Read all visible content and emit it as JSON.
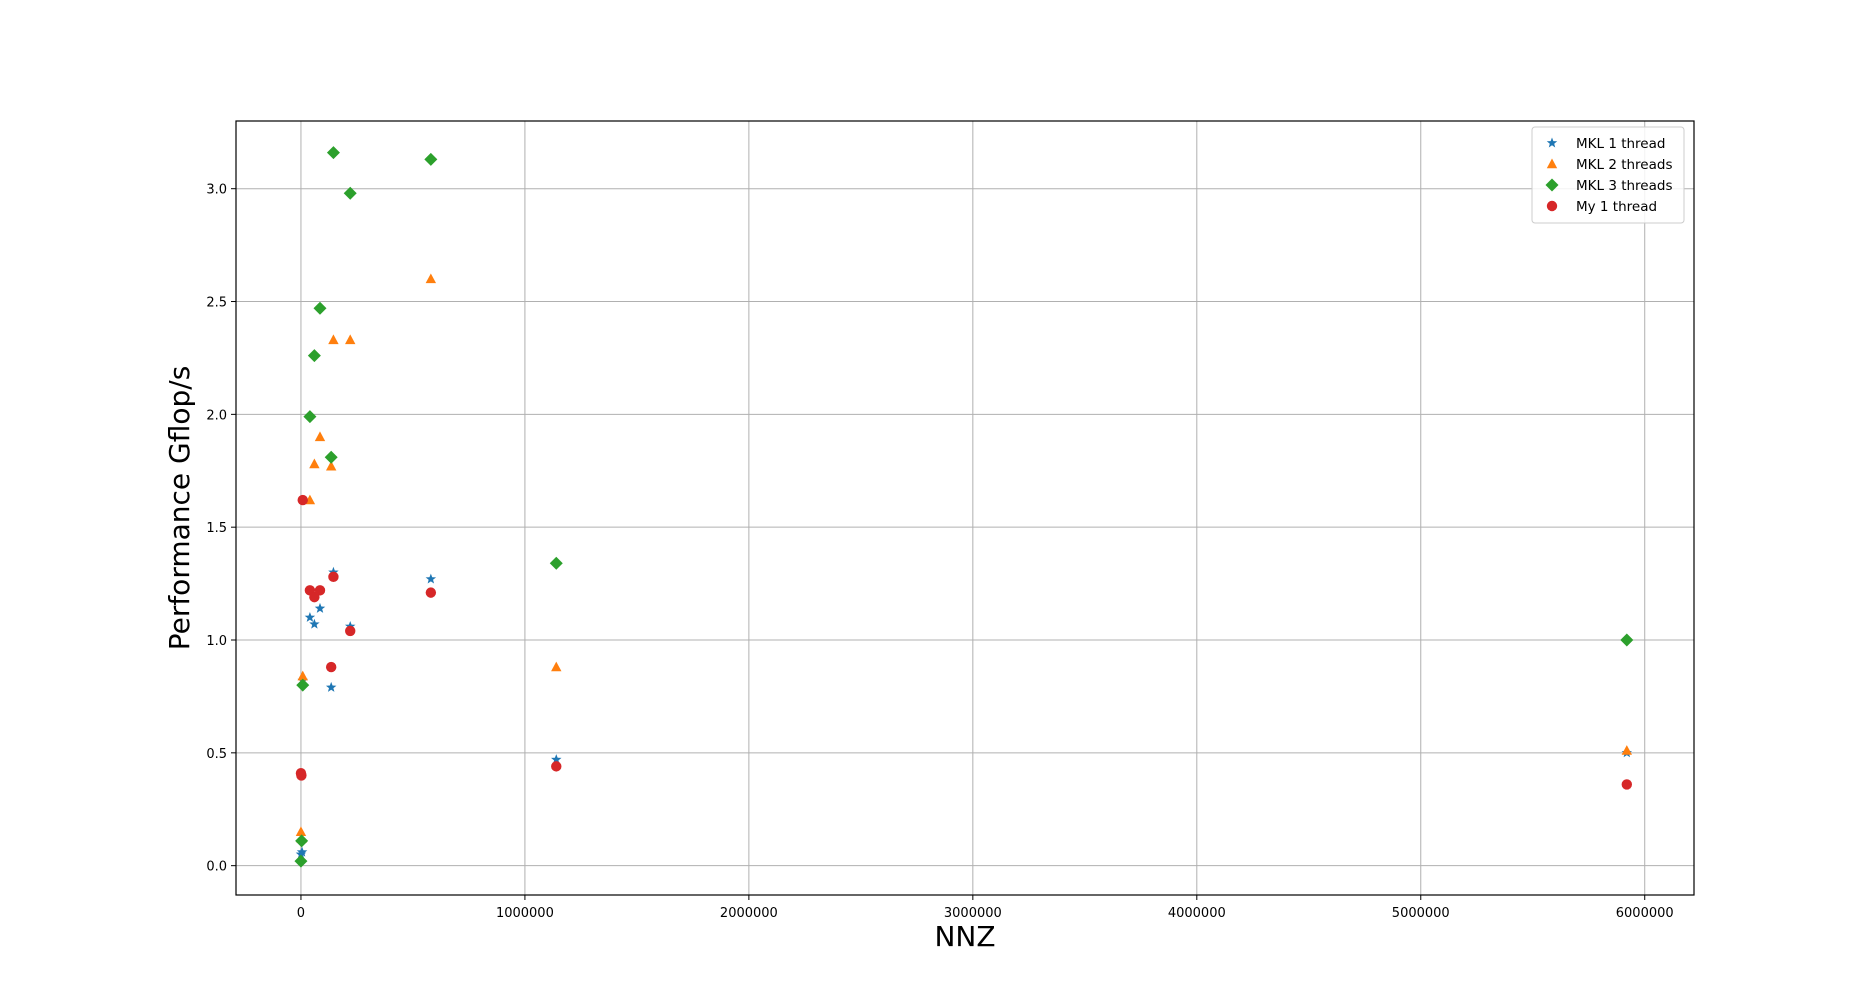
{
  "chart_data": {
    "type": "scatter",
    "title": "",
    "xlabel": "NNZ",
    "ylabel": "Performance Gflop/s",
    "xlim": [
      -290000,
      6220000
    ],
    "ylim": [
      -0.13,
      3.3
    ],
    "xticks": [
      0,
      1000000,
      2000000,
      3000000,
      4000000,
      5000000,
      6000000
    ],
    "yticks": [
      0.0,
      0.5,
      1.0,
      1.5,
      2.0,
      2.5,
      3.0
    ],
    "grid": true,
    "legend_position": "top-right",
    "series": [
      {
        "name": "MKL 1 thread",
        "marker": "star",
        "color": "#1f77b4",
        "points": [
          [
            0,
            0.05
          ],
          [
            5000,
            0.06
          ],
          [
            8000,
            0.82
          ],
          [
            40000,
            1.1
          ],
          [
            60000,
            1.07
          ],
          [
            85000,
            1.14
          ],
          [
            135000,
            0.79
          ],
          [
            145000,
            1.3
          ],
          [
            220000,
            1.06
          ],
          [
            580000,
            1.27
          ],
          [
            1140000,
            0.47
          ],
          [
            5920000,
            0.5
          ]
        ]
      },
      {
        "name": "MKL 2 threads",
        "marker": "triangle",
        "color": "#ff7f0e",
        "points": [
          [
            0,
            0.15
          ],
          [
            3000,
            0.12
          ],
          [
            8000,
            0.84
          ],
          [
            40000,
            1.62
          ],
          [
            60000,
            1.78
          ],
          [
            85000,
            1.9
          ],
          [
            135000,
            1.77
          ],
          [
            145000,
            2.33
          ],
          [
            220000,
            2.33
          ],
          [
            580000,
            2.6
          ],
          [
            1140000,
            0.88
          ],
          [
            5920000,
            0.51
          ]
        ]
      },
      {
        "name": "MKL 3 threads",
        "marker": "diamond",
        "color": "#2ca02c",
        "points": [
          [
            0,
            0.02
          ],
          [
            3000,
            0.11
          ],
          [
            8000,
            0.8
          ],
          [
            40000,
            1.99
          ],
          [
            60000,
            2.26
          ],
          [
            85000,
            2.47
          ],
          [
            135000,
            1.81
          ],
          [
            145000,
            3.16
          ],
          [
            220000,
            2.98
          ],
          [
            580000,
            3.13
          ],
          [
            1140000,
            1.34
          ],
          [
            5920000,
            1.0
          ]
        ]
      },
      {
        "name": "My 1 thread",
        "marker": "circle",
        "color": "#d62728",
        "points": [
          [
            0,
            0.41
          ],
          [
            2000,
            0.4
          ],
          [
            8000,
            1.62
          ],
          [
            40000,
            1.22
          ],
          [
            60000,
            1.19
          ],
          [
            85000,
            1.22
          ],
          [
            135000,
            0.88
          ],
          [
            145000,
            1.28
          ],
          [
            220000,
            1.04
          ],
          [
            580000,
            1.21
          ],
          [
            1140000,
            0.44
          ],
          [
            5920000,
            0.36
          ]
        ]
      }
    ]
  }
}
